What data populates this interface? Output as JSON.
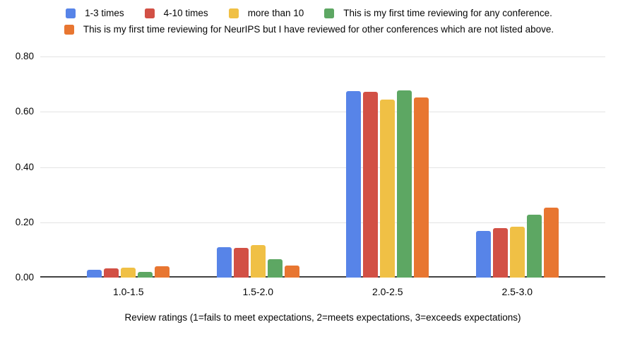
{
  "legend": {
    "row1_items": [
      {
        "label": "1-3 times",
        "color": "#5784E8"
      },
      {
        "label": "4-10 times",
        "color": "#D25045"
      },
      {
        "label": "more than 10",
        "color": "#F0C045"
      },
      {
        "label": "This is my first time reviewing for any conference.",
        "color": "#5DA763"
      }
    ],
    "row2_items": [
      {
        "label": "This is my first time reviewing for NeurIPS but I have reviewed for other conferences which are not listed above.",
        "color": "#E87631"
      }
    ]
  },
  "chart_data": {
    "type": "bar",
    "title": "",
    "categories": [
      "1.0-1.5",
      "1.5-2.0",
      "2.0-2.5",
      "2.5-3.0"
    ],
    "series": [
      {
        "name": "1-3 times",
        "color": "#5784E8",
        "values": [
          0.029,
          0.111,
          0.674,
          0.17
        ]
      },
      {
        "name": "4-10 times",
        "color": "#D25045",
        "values": [
          0.033,
          0.107,
          0.671,
          0.178
        ]
      },
      {
        "name": "more than 10",
        "color": "#F0C045",
        "values": [
          0.037,
          0.118,
          0.645,
          0.184
        ]
      },
      {
        "name": "This is my first time reviewing for any conference.",
        "color": "#5DA763",
        "values": [
          0.021,
          0.066,
          0.677,
          0.227
        ]
      },
      {
        "name": "This is my first time reviewing for NeurIPS but I have reviewed for other conferences which are not listed above.",
        "color": "#E87631",
        "values": [
          0.04,
          0.044,
          0.651,
          0.254
        ]
      }
    ],
    "xlabel": "Review ratings (1=fails to meet expectations, 2=meets expectations, 3=exceeds expectations)",
    "ylabel": "",
    "ylim": [
      0,
      0.8
    ],
    "yticks": [
      "0.00",
      "0.20",
      "0.40",
      "0.60",
      "0.80"
    ],
    "grid": true,
    "legend_position": "top"
  }
}
